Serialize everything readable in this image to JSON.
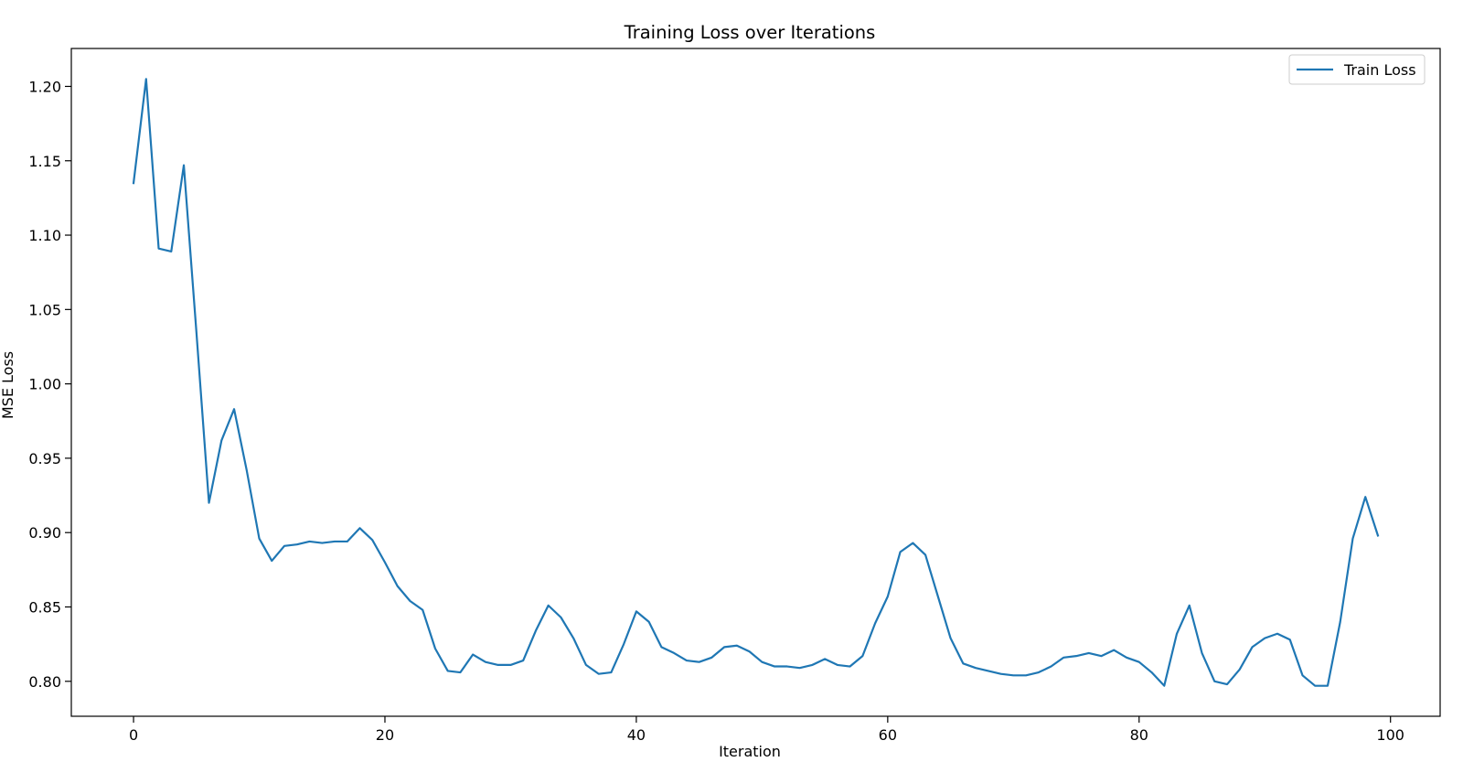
{
  "chart_data": {
    "type": "line",
    "title": "Training Loss over Iterations",
    "xlabel": "Iteration",
    "ylabel": "MSE Loss",
    "xlim": [
      -4.95,
      103.95
    ],
    "ylim": [
      0.7765,
      1.2255
    ],
    "xticks": [
      0,
      20,
      40,
      60,
      80,
      100
    ],
    "xtick_labels": [
      "0",
      "20",
      "40",
      "60",
      "80",
      "100"
    ],
    "yticks": [
      0.8,
      0.85,
      0.9,
      0.95,
      1.0,
      1.05,
      1.1,
      1.15,
      1.2
    ],
    "ytick_labels": [
      "0.80",
      "0.85",
      "0.90",
      "0.95",
      "1.00",
      "1.05",
      "1.10",
      "1.15",
      "1.20"
    ],
    "grid": false,
    "legend_position": "top-right",
    "series": [
      {
        "name": "Train Loss",
        "color": "#1f77b4",
        "x": [
          0,
          1,
          2,
          3,
          4,
          5,
          6,
          7,
          8,
          9,
          10,
          11,
          12,
          13,
          14,
          15,
          16,
          17,
          18,
          19,
          20,
          21,
          22,
          23,
          24,
          25,
          26,
          27,
          28,
          29,
          30,
          31,
          32,
          33,
          34,
          35,
          36,
          37,
          38,
          39,
          40,
          41,
          42,
          43,
          44,
          45,
          46,
          47,
          48,
          49,
          50,
          51,
          52,
          53,
          54,
          55,
          56,
          57,
          58,
          59,
          60,
          61,
          62,
          63,
          64,
          65,
          66,
          67,
          68,
          69,
          70,
          71,
          72,
          73,
          74,
          75,
          76,
          77,
          78,
          79,
          80,
          81,
          82,
          83,
          84,
          85,
          86,
          87,
          88,
          89,
          90,
          91,
          92,
          93,
          94,
          95,
          96,
          97,
          98,
          99
        ],
        "y": [
          1.135,
          1.205,
          1.091,
          1.089,
          1.147,
          1.035,
          0.92,
          0.962,
          0.983,
          0.942,
          0.896,
          0.881,
          0.891,
          0.892,
          0.894,
          0.893,
          0.894,
          0.894,
          0.903,
          0.895,
          0.88,
          0.864,
          0.854,
          0.848,
          0.822,
          0.807,
          0.806,
          0.818,
          0.813,
          0.811,
          0.811,
          0.814,
          0.834,
          0.851,
          0.843,
          0.829,
          0.811,
          0.805,
          0.806,
          0.825,
          0.847,
          0.84,
          0.823,
          0.819,
          0.814,
          0.813,
          0.816,
          0.823,
          0.824,
          0.82,
          0.813,
          0.81,
          0.81,
          0.809,
          0.811,
          0.815,
          0.811,
          0.81,
          0.817,
          0.839,
          0.857,
          0.887,
          0.893,
          0.885,
          0.857,
          0.829,
          0.812,
          0.809,
          0.807,
          0.805,
          0.804,
          0.804,
          0.806,
          0.81,
          0.816,
          0.817,
          0.819,
          0.817,
          0.821,
          0.816,
          0.813,
          0.806,
          0.797,
          0.832,
          0.851,
          0.819,
          0.8,
          0.798,
          0.808,
          0.823,
          0.829,
          0.832,
          0.828,
          0.804,
          0.797,
          0.797,
          0.84,
          0.896,
          0.924,
          0.898
        ]
      }
    ]
  }
}
